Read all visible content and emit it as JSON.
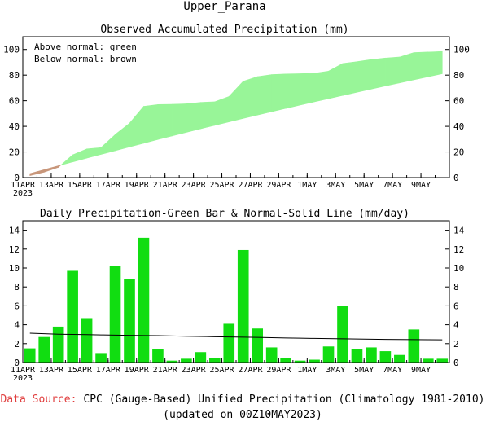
{
  "title": "Upper_Parana",
  "source_label": "Data Source:",
  "source_text": "CPC (Gauge-Based) Unified Precipitation (Climatology 1981-2010)",
  "updated_text": "(updated on 00Z10MAY2023)",
  "colors": {
    "above_fill": "#98f598",
    "below_fill": "#c8967a",
    "bar_fill": "#11dd11",
    "normal_line": "#000000",
    "source_label": "#e03c3c"
  },
  "x_labels": [
    "11APR",
    "13APR",
    "15APR",
    "17APR",
    "19APR",
    "21APR",
    "23APR",
    "25APR",
    "27APR",
    "29APR",
    "1MAY",
    "3MAY",
    "5MAY",
    "7MAY",
    "9MAY"
  ],
  "x_year_label": "2023",
  "chart_data": [
    {
      "type": "area",
      "title": "Observed Accumulated Precipitation (mm)",
      "legend": [
        "Above normal: green",
        "Below normal: brown"
      ],
      "ylim": [
        0,
        110
      ],
      "y_ticks": [
        0,
        20,
        40,
        60,
        80,
        100
      ],
      "x": [
        "11APR",
        "12APR",
        "13APR",
        "14APR",
        "15APR",
        "16APR",
        "17APR",
        "18APR",
        "19APR",
        "20APR",
        "21APR",
        "22APR",
        "23APR",
        "24APR",
        "25APR",
        "26APR",
        "27APR",
        "28APR",
        "29APR",
        "30APR",
        "1MAY",
        "2MAY",
        "3MAY",
        "4MAY",
        "5MAY",
        "6MAY",
        "7MAY",
        "8MAY",
        "9MAY",
        "10MAY"
      ],
      "series": [
        {
          "name": "Observed",
          "values": [
            1.5,
            4.2,
            8.0,
            17.7,
            22.4,
            23.4,
            33.6,
            42.4,
            55.6,
            57.0,
            57.2,
            57.6,
            58.7,
            59.2,
            63.3,
            75.2,
            78.8,
            80.4,
            80.9,
            81.1,
            81.4,
            83.1,
            89.1,
            90.5,
            92.1,
            93.3,
            94.1,
            97.6,
            98.0,
            98.4
          ]
        },
        {
          "name": "Normal",
          "values": [
            3.1,
            6.2,
            9.2,
            12.2,
            15.2,
            18.1,
            21.0,
            23.9,
            26.8,
            29.7,
            32.5,
            35.3,
            38.1,
            40.8,
            43.5,
            46.2,
            48.8,
            51.4,
            54.0,
            56.6,
            59.1,
            61.6,
            64.1,
            66.6,
            69.1,
            71.5,
            73.9,
            76.3,
            78.7,
            81.1
          ]
        }
      ]
    },
    {
      "type": "bar",
      "title": "Daily Precipitation-Green Bar & Normal-Solid Line (mm/day)",
      "ylim": [
        0,
        15
      ],
      "y_ticks": [
        0,
        2,
        4,
        6,
        8,
        10,
        12,
        14
      ],
      "categories": [
        "11APR",
        "12APR",
        "13APR",
        "14APR",
        "15APR",
        "16APR",
        "17APR",
        "18APR",
        "19APR",
        "20APR",
        "21APR",
        "22APR",
        "23APR",
        "24APR",
        "25APR",
        "26APR",
        "27APR",
        "28APR",
        "29APR",
        "30APR",
        "1MAY",
        "2MAY",
        "3MAY",
        "4MAY",
        "5MAY",
        "6MAY",
        "7MAY",
        "8MAY",
        "9MAY",
        "10MAY"
      ],
      "series": [
        {
          "name": "Daily Precipitation",
          "values": [
            1.5,
            2.7,
            3.8,
            9.7,
            4.7,
            1.0,
            10.2,
            8.8,
            13.2,
            1.4,
            0.2,
            0.4,
            1.1,
            0.5,
            4.1,
            11.9,
            3.6,
            1.6,
            0.5,
            0.2,
            0.3,
            1.7,
            6.0,
            1.4,
            1.6,
            1.2,
            0.8,
            3.5,
            0.4,
            0.4
          ]
        },
        {
          "name": "Normal",
          "values": [
            3.1,
            3.05,
            3.0,
            2.97,
            2.95,
            2.92,
            2.9,
            2.88,
            2.86,
            2.84,
            2.81,
            2.78,
            2.76,
            2.73,
            2.7,
            2.68,
            2.66,
            2.63,
            2.6,
            2.58,
            2.55,
            2.53,
            2.51,
            2.49,
            2.47,
            2.45,
            2.43,
            2.42,
            2.41,
            2.4
          ]
        }
      ]
    }
  ]
}
